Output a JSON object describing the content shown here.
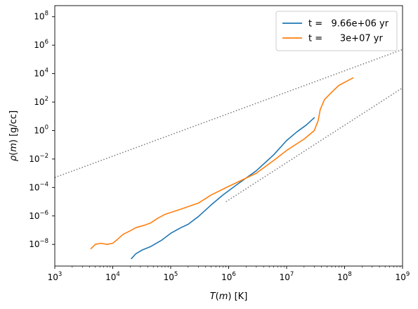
{
  "chart_data": {
    "type": "line",
    "xlabel": "T(m) [K]",
    "ylabel": "ρ(m) [g/cc]",
    "xscale": "log",
    "yscale": "log",
    "xlim": [
      1000,
      1000000000
    ],
    "ylim": [
      3e-10,
      600000000.0
    ],
    "grid": false,
    "legend_position": "top-right",
    "x_tick_labels": [
      {
        "value": 1000,
        "base": "10",
        "exp": "3"
      },
      {
        "value": 10000,
        "base": "10",
        "exp": "4"
      },
      {
        "value": 100000,
        "base": "10",
        "exp": "5"
      },
      {
        "value": 1000000,
        "base": "10",
        "exp": "6"
      },
      {
        "value": 10000000,
        "base": "10",
        "exp": "7"
      },
      {
        "value": 100000000,
        "base": "10",
        "exp": "8"
      },
      {
        "value": 1000000000,
        "base": "10",
        "exp": "9"
      }
    ],
    "y_tick_labels": [
      {
        "value": 1e-08,
        "base": "10",
        "exp": "−8"
      },
      {
        "value": 1e-06,
        "base": "10",
        "exp": "−6"
      },
      {
        "value": 0.0001,
        "base": "10",
        "exp": "−4"
      },
      {
        "value": 0.01,
        "base": "10",
        "exp": "−2"
      },
      {
        "value": 1,
        "base": "10",
        "exp": "0"
      },
      {
        "value": 100,
        "base": "10",
        "exp": "2"
      },
      {
        "value": 10000,
        "base": "10",
        "exp": "4"
      },
      {
        "value": 1000000,
        "base": "10",
        "exp": "6"
      },
      {
        "value": 100000000,
        "base": "10",
        "exp": "8"
      }
    ],
    "series": [
      {
        "name": "t =   9.66e+06 yr",
        "color": "#1f77b4",
        "style": "solid",
        "points": [
          [
            21000,
            1e-09
          ],
          [
            25000,
            2.2e-09
          ],
          [
            32000,
            4e-09
          ],
          [
            45000,
            7e-09
          ],
          [
            70000,
            2e-08
          ],
          [
            100000,
            6e-08
          ],
          [
            150000,
            1.5e-07
          ],
          [
            200000,
            2.6e-07
          ],
          [
            300000,
            9e-07
          ],
          [
            500000,
            6e-06
          ],
          [
            800000,
            3e-05
          ],
          [
            1500000,
            0.0002
          ],
          [
            3000000,
            0.0015
          ],
          [
            6000000,
            0.02
          ],
          [
            10000000,
            0.2
          ],
          [
            15000000,
            0.8
          ],
          [
            22000000,
            2.5
          ],
          [
            30000000,
            8
          ]
        ]
      },
      {
        "name": "t =      3e+07 yr",
        "color": "#ff7f0e",
        "style": "solid",
        "points": [
          [
            4200,
            5e-09
          ],
          [
            5000,
            1e-08
          ],
          [
            6200,
            1.2e-08
          ],
          [
            8000,
            1e-08
          ],
          [
            10000,
            1.2e-08
          ],
          [
            12000,
            2.2e-08
          ],
          [
            15000,
            5e-08
          ],
          [
            20000,
            9e-08
          ],
          [
            25000,
            1.5e-07
          ],
          [
            35000,
            2.2e-07
          ],
          [
            45000,
            3.2e-07
          ],
          [
            60000,
            7e-07
          ],
          [
            80000,
            1.3e-06
          ],
          [
            150000,
            3e-06
          ],
          [
            300000,
            8e-06
          ],
          [
            500000,
            3e-05
          ],
          [
            1000000,
            0.00012
          ],
          [
            3000000,
            0.001
          ],
          [
            6000000,
            0.008
          ],
          [
            10000000,
            0.04
          ],
          [
            20000000,
            0.25
          ],
          [
            30000000,
            1
          ],
          [
            35000000,
            5
          ],
          [
            38000000,
            30
          ],
          [
            45000000,
            150.0
          ],
          [
            60000000,
            500.0
          ],
          [
            80000000,
            1500.0
          ],
          [
            110000000,
            3000.0
          ],
          [
            140000000,
            5000.0
          ]
        ]
      },
      {
        "name": "",
        "color": "#808080",
        "style": "dotted",
        "points": [
          [
            1000,
            0.0005
          ],
          [
            1000000000,
            500000.0
          ]
        ]
      },
      {
        "name": "",
        "color": "#808080",
        "style": "dotted",
        "points": [
          [
            900000,
            1e-05
          ],
          [
            1000000000,
            1000.0
          ]
        ]
      }
    ]
  }
}
